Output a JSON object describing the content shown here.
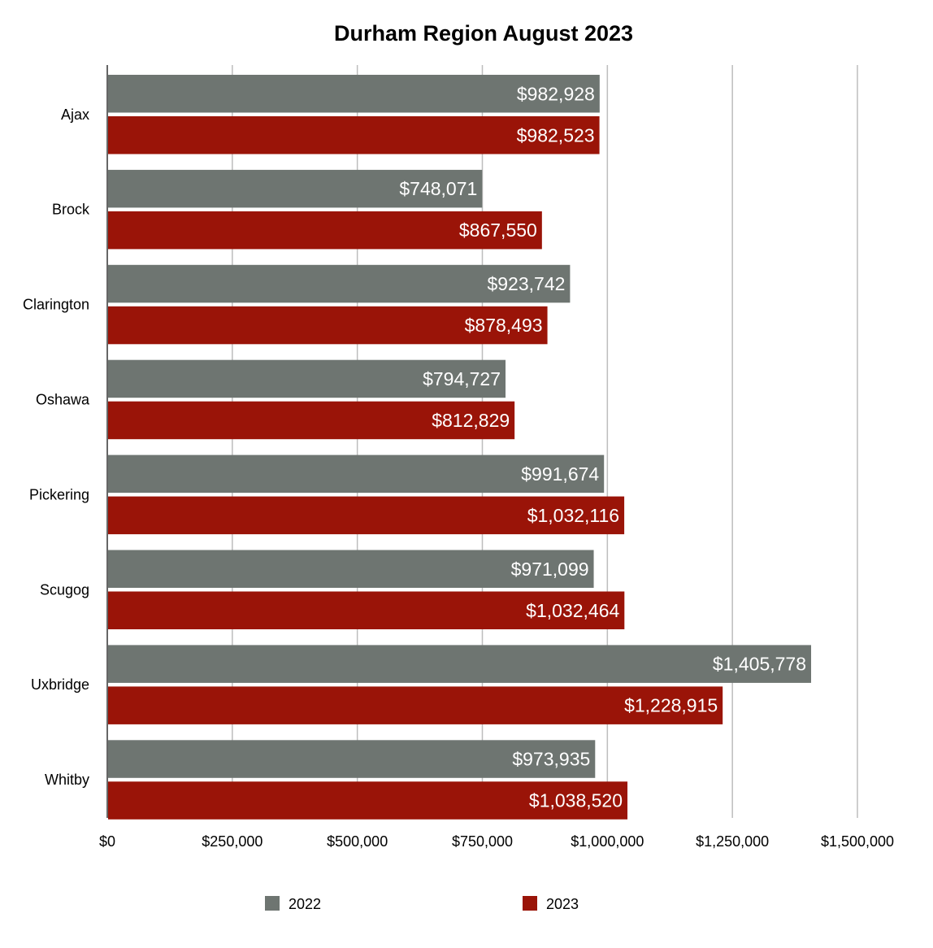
{
  "chart_data": {
    "type": "bar",
    "orientation": "horizontal",
    "title": "Durham Region August 2023",
    "categories": [
      "Ajax",
      "Brock",
      "Clarington",
      "Oshawa",
      "Pickering",
      "Scugog",
      "Uxbridge",
      "Whitby"
    ],
    "series": [
      {
        "name": "2022",
        "color": "#6e7571",
        "values": [
          982928,
          748071,
          923742,
          794727,
          991674,
          971099,
          1405778,
          973935
        ],
        "labels": [
          "$982,928",
          "$748,071",
          "$923,742",
          "$794,727",
          "$991,674",
          "$971,099",
          "$1,405,778",
          "$973,935"
        ]
      },
      {
        "name": "2023",
        "color": "#9a1408",
        "values": [
          982523,
          867550,
          878493,
          812829,
          1032116,
          1032464,
          1228915,
          1038520
        ],
        "labels": [
          "$982,523",
          "$867,550",
          "$878,493",
          "$812,829",
          "$1,032,116",
          "$1,032,464",
          "$1,228,915",
          "$1,038,520"
        ]
      }
    ],
    "xlim": [
      0,
      1500000
    ],
    "xticks": [
      0,
      250000,
      500000,
      750000,
      1000000,
      1250000,
      1500000
    ],
    "xtick_labels": [
      "$0",
      "$250,000",
      "$500,000",
      "$750,000",
      "$1,000,000",
      "$1,250,000",
      "$1,500,000"
    ],
    "grid": "vertical",
    "legend_position": "bottom"
  }
}
